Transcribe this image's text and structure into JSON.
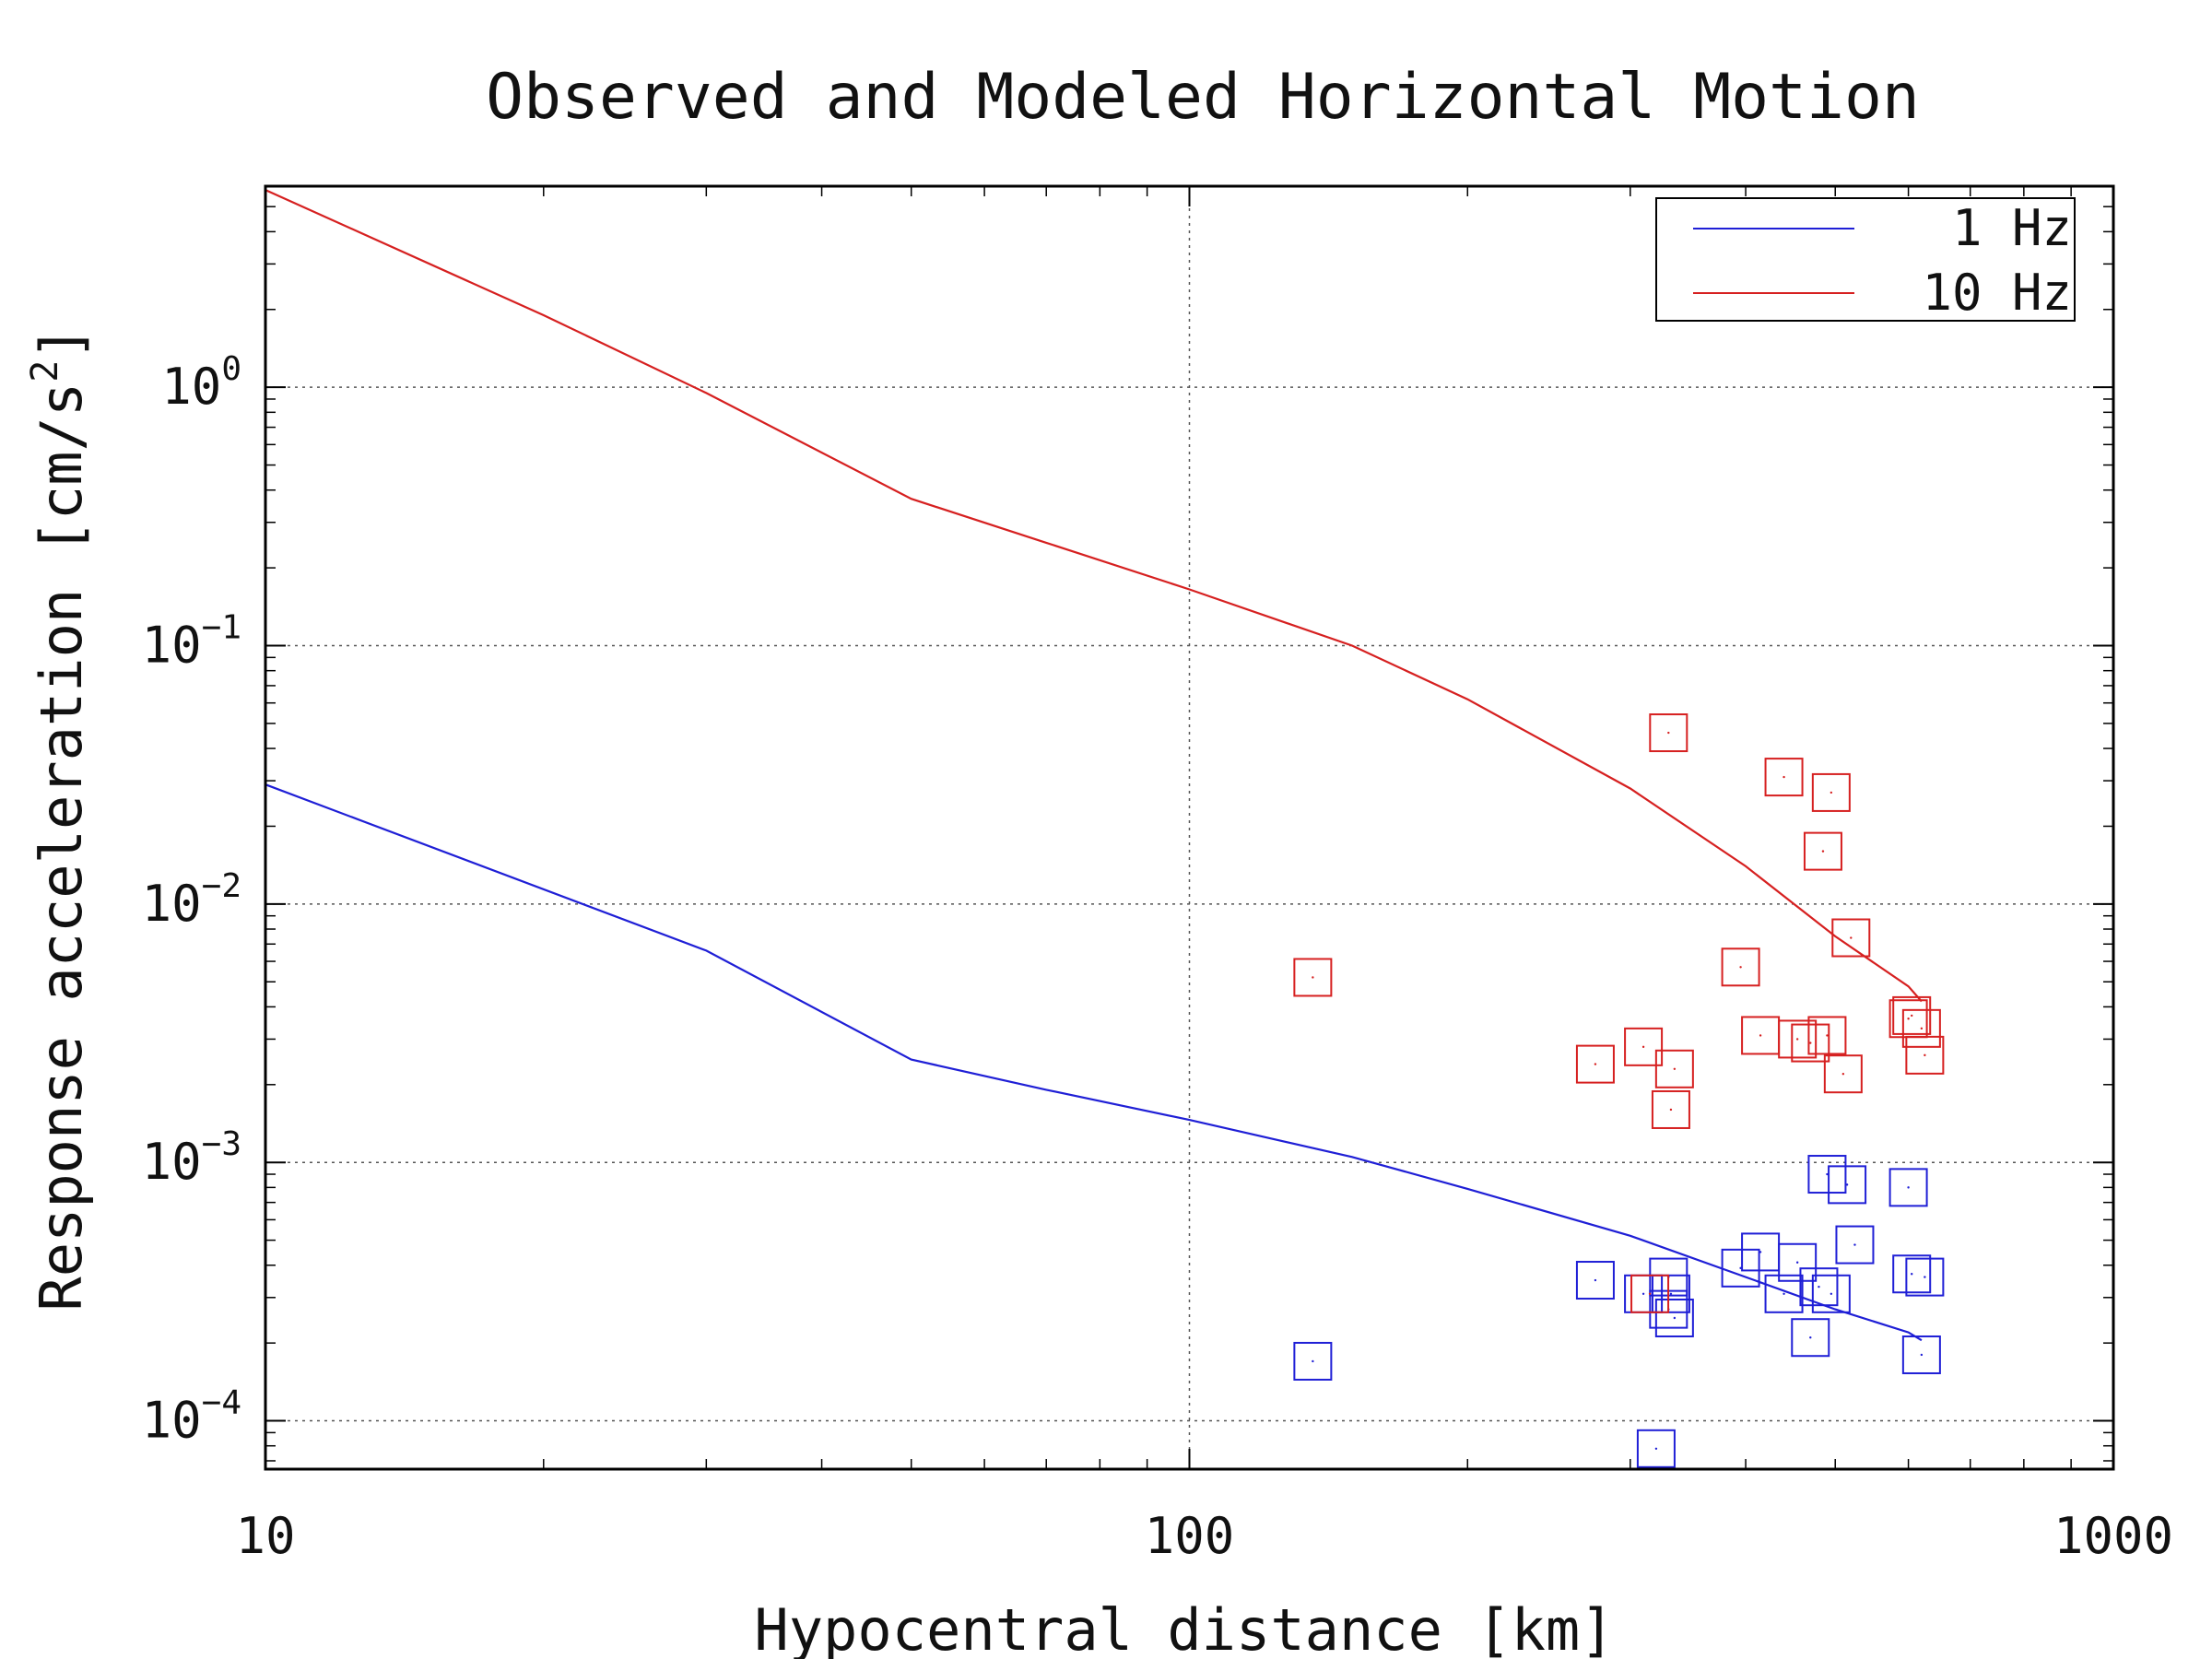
{
  "chart_data": {
    "type": "scatter",
    "title": "Observed and Modeled Horizontal Motion",
    "xlabel": "Hypocentral distance [km]",
    "ylabel": "Response acceleration [cm/s",
    "ylabel_sup": "2",
    "ylabel_end": "]",
    "x_scale": "log",
    "y_scale": "log",
    "xlim": [
      10,
      1000
    ],
    "ylim": [
      6.5e-05,
      6.0
    ],
    "grid": true,
    "legend_position": "top-right",
    "x_ticks": [
      {
        "value": 10,
        "label": "10"
      },
      {
        "value": 100,
        "label": "100"
      },
      {
        "value": 1000,
        "label": "1000"
      }
    ],
    "y_ticks": [
      {
        "value": 1,
        "base": "10",
        "exp": "0"
      },
      {
        "value": 0.1,
        "base": "10",
        "exp": "−1"
      },
      {
        "value": 0.01,
        "base": "10",
        "exp": "−2"
      },
      {
        "value": 0.001,
        "base": "10",
        "exp": "−3"
      },
      {
        "value": 0.0001,
        "base": "10",
        "exp": "−4"
      }
    ],
    "series": [
      {
        "name": "1 Hz",
        "color": "#1f1fd6",
        "line": {
          "x": [
            10,
            30,
            50,
            70,
            100,
            150,
            200,
            300,
            400,
            500,
            600,
            620
          ],
          "y": [
            0.029,
            0.0066,
            0.0025,
            0.00191,
            0.00146,
            0.00105,
            0.00079,
            0.00052,
            0.00036,
            0.00027,
            0.00022,
            0.000205
          ]
        },
        "observed": {
          "x": [
            136,
            275,
            310,
            320,
            330,
            332,
            335,
            395,
            415,
            440,
            455,
            470,
            480,
            490,
            495,
            515,
            525,
            600,
            605,
            620,
            625,
            330
          ],
          "y": [
            0.00017,
            0.00035,
            0.00031,
            7.8e-05,
            0.00036,
            0.00031,
            0.00025,
            0.00039,
            0.00045,
            0.00031,
            0.00041,
            0.00021,
            0.00033,
            0.0009,
            0.00031,
            0.00082,
            0.00048,
            0.0008,
            0.00037,
            0.00018,
            0.00036,
            0.00027
          ]
        }
      },
      {
        "name": "10 Hz",
        "color": "#d62020",
        "line": {
          "x": [
            10,
            20,
            30,
            50,
            70,
            100,
            150,
            200,
            300,
            400,
            500,
            600,
            620
          ],
          "y": [
            5.8,
            1.9,
            0.95,
            0.37,
            0.25,
            0.165,
            0.1,
            0.062,
            0.028,
            0.014,
            0.0075,
            0.0048,
            0.0042
          ]
        },
        "observed": {
          "x": [
            136,
            275,
            310,
            315,
            330,
            332,
            335,
            395,
            415,
            440,
            455,
            470,
            485,
            490,
            495,
            510,
            520,
            600,
            605,
            620,
            625
          ],
          "y": [
            0.0052,
            0.0024,
            0.0028,
            0.00031,
            0.046,
            0.0016,
            0.0023,
            0.0057,
            0.0031,
            0.031,
            0.003,
            0.0029,
            0.016,
            0.0031,
            0.027,
            0.0022,
            0.0074,
            0.0036,
            0.0037,
            0.0033,
            0.0026
          ]
        }
      }
    ]
  }
}
